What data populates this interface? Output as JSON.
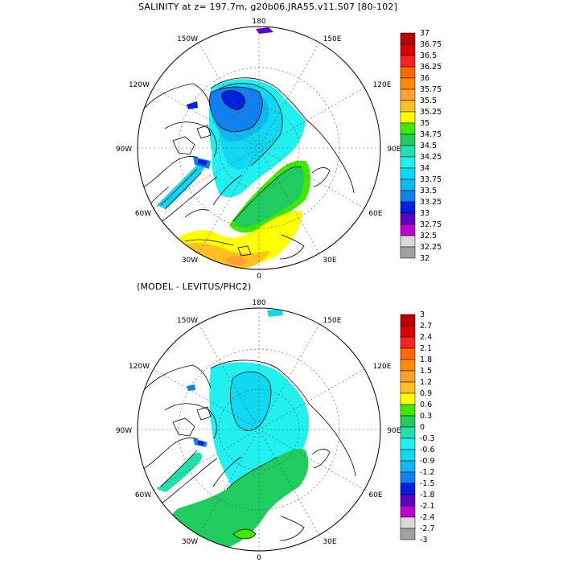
{
  "titles": {
    "main": "SALINITY at z= 197.7m, g20b06.JRA55.v11.S07 [80-102]",
    "diff": "(MODEL - LEVITUS/PHC2)"
  },
  "projection": "north-polar-stereographic",
  "lon_labels": [
    "180",
    "150W",
    "150E",
    "120W",
    "120E",
    "90W",
    "90E",
    "60W",
    "60E",
    "30W",
    "30E",
    "0"
  ],
  "panels": [
    {
      "name": "salinity",
      "colorbar": {
        "levels": [
          "37",
          "36.75",
          "36.5",
          "36.25",
          "36",
          "35.75",
          "35.5",
          "35.25",
          "35",
          "34.75",
          "34.5",
          "34.25",
          "34",
          "33.75",
          "33.5",
          "33.25",
          "33",
          "32.75",
          "32.5",
          "32.25",
          "32"
        ],
        "colors": [
          "#b80000",
          "#dd0000",
          "#ff2020",
          "#ff6a00",
          "#ff8c00",
          "#ffa030",
          "#ffc020",
          "#ffff00",
          "#40e800",
          "#20cc60",
          "#20e0b0",
          "#20f0f0",
          "#10d8f0",
          "#10b8f0",
          "#1080f0",
          "#0020e0",
          "#6000c0",
          "#c000d0",
          "#d8d8d8",
          "#a0a0a0"
        ]
      }
    },
    {
      "name": "model-minus-levitus",
      "colorbar": {
        "levels": [
          "3",
          "2.7",
          "2.4",
          "2.1",
          "1.8",
          "1.5",
          "1.2",
          "0.9",
          "0.6",
          "0.3",
          "0",
          "-0.3",
          "-0.6",
          "-0.9",
          "-1.2",
          "-1.5",
          "-1.8",
          "-2.1",
          "-2.4",
          "-2.7",
          "-3"
        ],
        "colors": [
          "#b80000",
          "#dd0000",
          "#ff2020",
          "#ff6a00",
          "#ff8c00",
          "#ffa030",
          "#ffc020",
          "#ffff00",
          "#40e800",
          "#20cc60",
          "#20e0b0",
          "#20f0f0",
          "#10d8f0",
          "#10b8f0",
          "#1080f0",
          "#0020e0",
          "#6000c0",
          "#c000d0",
          "#d8d8d8",
          "#a0a0a0"
        ]
      }
    }
  ]
}
